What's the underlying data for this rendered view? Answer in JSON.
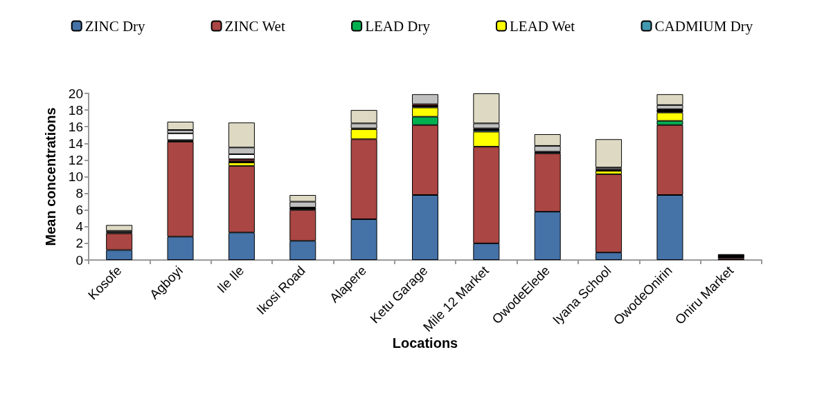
{
  "chart_data": {
    "type": "bar",
    "stacked": true,
    "xlabel": "Locations",
    "ylabel": "Mean concentrations",
    "categories": [
      "Kosofe",
      "Agboyi",
      "Ile Ile",
      "Ikosi Road",
      "Alapere",
      "Ketu Garage",
      "Mile 12 Market",
      "OwodeElede",
      "Iyana School",
      "OwodeOnirin",
      "Oniru Market"
    ],
    "series": [
      {
        "name": "ZINC Dry",
        "color": "#4572a7",
        "values": [
          1.2,
          2.8,
          3.3,
          2.3,
          4.9,
          7.8,
          2.0,
          5.8,
          0.9,
          7.8,
          null
        ]
      },
      {
        "name": "ZINC Wet",
        "color": "#aa4643",
        "values": [
          2.0,
          11.4,
          8.0,
          3.7,
          9.6,
          8.4,
          11.6,
          7.0,
          9.4,
          8.4,
          0.2
        ]
      },
      {
        "name": "LEAD Dry",
        "color": "#00b050",
        "values": [
          null,
          null,
          null,
          null,
          null,
          1.0,
          null,
          null,
          null,
          0.5,
          null
        ]
      },
      {
        "name": "LEAD Wet",
        "color": "#ffff00",
        "values": [
          null,
          null,
          0.4,
          null,
          1.2,
          1.1,
          1.8,
          null,
          0.4,
          1.0,
          null
        ]
      },
      {
        "name": "CADMIUM Dry",
        "color": "#4198af",
        "values": [
          null,
          null,
          null,
          null,
          null,
          null,
          0.2,
          null,
          null,
          null,
          null
        ]
      },
      {
        "color": "#000000",
        "values": [
          0.1,
          0.2,
          0.2,
          0.3,
          0.1,
          0.2,
          0.2,
          0.2,
          0.2,
          0.4,
          0.5
        ]
      },
      {
        "color": "#ff0000",
        "values": [
          null,
          null,
          0.2,
          null,
          null,
          0.2,
          null,
          null,
          null,
          null,
          null
        ]
      },
      {
        "color": "#ffffff",
        "values": [
          null,
          0.8,
          0.6,
          null,
          null,
          null,
          null,
          null,
          null,
          null,
          null
        ]
      },
      {
        "color": "#bfbfbf",
        "values": [
          0.2,
          0.4,
          0.8,
          0.7,
          0.6,
          1.2,
          0.6,
          0.7,
          0.2,
          0.5,
          null
        ]
      },
      {
        "color": "#ddd9c3",
        "values": [
          0.7,
          1.0,
          3.0,
          0.8,
          1.6,
          null,
          3.6,
          1.4,
          3.4,
          1.3,
          null
        ]
      }
    ],
    "ylim": [
      0,
      20
    ],
    "yticks": [
      0,
      2,
      4,
      6,
      8,
      10,
      12,
      14,
      16,
      18,
      20
    ],
    "grid": false,
    "legend": "top"
  }
}
